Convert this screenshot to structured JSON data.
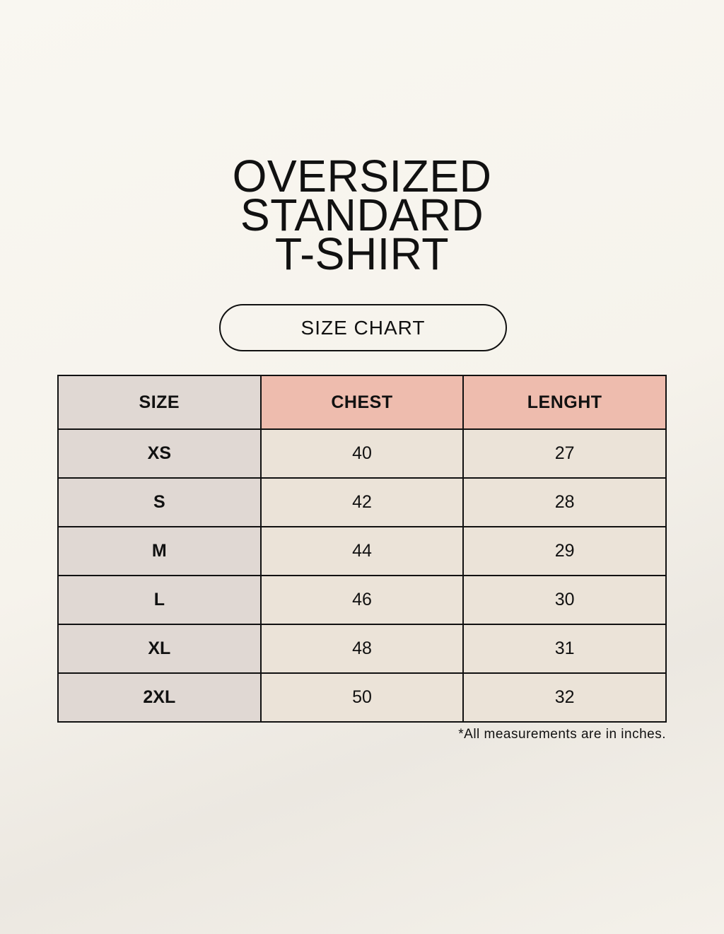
{
  "title_lines": [
    "OVERSIZED",
    "STANDARD",
    "T-SHIRT"
  ],
  "badge": "SIZE CHART",
  "table": {
    "headers": [
      "SIZE",
      "CHEST",
      "LENGHT"
    ],
    "rows": [
      [
        "XS",
        "40",
        "27"
      ],
      [
        "S",
        "42",
        "28"
      ],
      [
        "M",
        "44",
        "29"
      ],
      [
        "L",
        "46",
        "30"
      ],
      [
        "XL",
        "48",
        "31"
      ],
      [
        "2XL",
        "50",
        "32"
      ]
    ]
  },
  "note": "*All measurements are in inches.",
  "colors": {
    "size_column": "#e0d8d3",
    "header_accent": "#eebcae",
    "cell": "#ebe3d8"
  }
}
